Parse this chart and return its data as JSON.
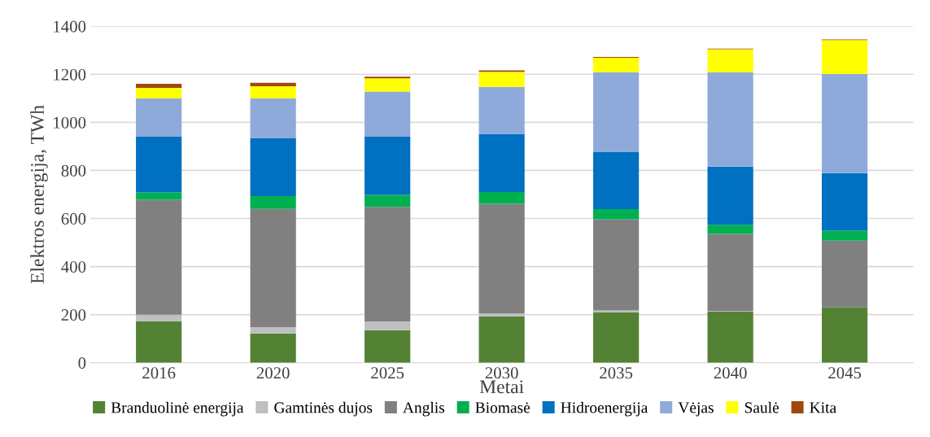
{
  "chart_data": {
    "type": "bar",
    "stacked": true,
    "xlabel": "Metai",
    "ylabel": "Elektros energija, TWh",
    "categories": [
      "2016",
      "2020",
      "2025",
      "2030",
      "2035",
      "2040",
      "2045"
    ],
    "ylim": [
      0,
      1400
    ],
    "yticks": [
      0,
      200,
      400,
      600,
      800,
      1000,
      1200,
      1400
    ],
    "grid": "y",
    "legend": "bottom",
    "series": [
      {
        "name": "Branduolinė energija",
        "color": "#548235",
        "values": [
          172,
          122,
          135,
          192,
          209,
          212,
          230
        ]
      },
      {
        "name": "Gamtinės dujos",
        "color": "#bfbfbf",
        "values": [
          28,
          26,
          37,
          13,
          8,
          4,
          0
        ]
      },
      {
        "name": "Anglis",
        "color": "#808080",
        "values": [
          478,
          492,
          476,
          456,
          380,
          320,
          278
        ]
      },
      {
        "name": "Biomasė",
        "color": "#00b050",
        "values": [
          30,
          53,
          50,
          49,
          42,
          38,
          41
        ]
      },
      {
        "name": "Hidroenergija",
        "color": "#0070c0",
        "values": [
          232,
          242,
          242,
          242,
          239,
          242,
          240
        ]
      },
      {
        "name": "Vėjas",
        "color": "#8eaadb",
        "values": [
          160,
          165,
          188,
          196,
          331,
          393,
          412
        ]
      },
      {
        "name": "Saulė",
        "color": "#ffff00",
        "values": [
          43,
          50,
          55,
          62,
          60,
          95,
          141
        ]
      },
      {
        "name": "Kita",
        "color": "#9e480e",
        "values": [
          17,
          15,
          7,
          6,
          3,
          3,
          3
        ]
      }
    ]
  }
}
